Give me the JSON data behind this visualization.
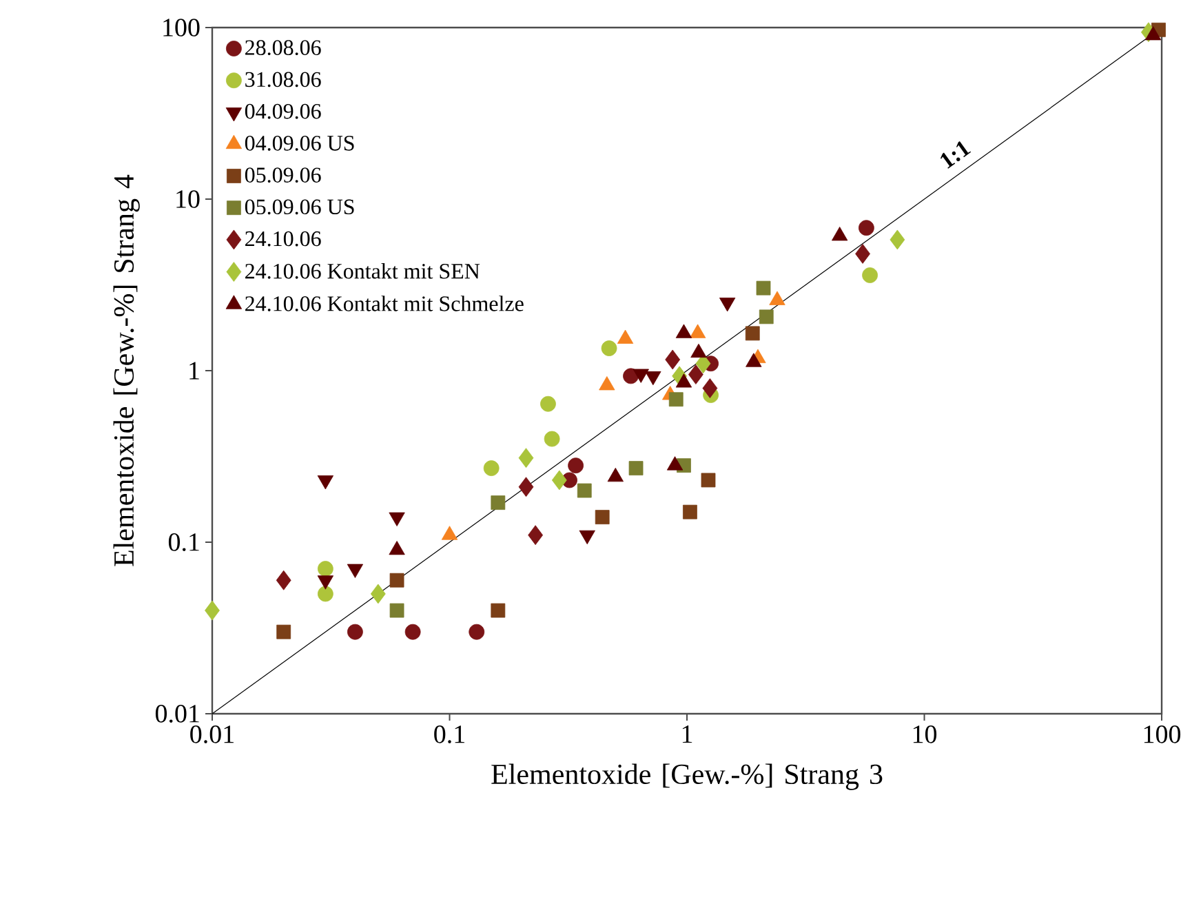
{
  "chart_data": {
    "type": "scatter",
    "xlabel": "Elementoxide [Gew.-%] Strang 3",
    "ylabel": "Elementoxide [Gew.-%] Strang 4",
    "log": "xy",
    "grid": false,
    "legend": "top left",
    "xlim": [
      0.01,
      100
    ],
    "ylim": [
      0.01,
      100
    ],
    "xticks": [
      0.01,
      0.1,
      1,
      10,
      100
    ],
    "yticks": [
      0.01,
      0.1,
      1,
      10,
      100
    ],
    "annotations": [
      "1:1"
    ],
    "series": [
      {
        "name": "28.08.06",
        "color": "#7b1416",
        "marker": "circle",
        "x": [
          0.04,
          0.07,
          0.13,
          0.34,
          0.32,
          0.58,
          1.26,
          5.7
        ],
        "values": [
          0.03,
          0.03,
          0.03,
          0.28,
          0.23,
          0.93,
          1.1,
          6.8
        ]
      },
      {
        "name": "31.08.06",
        "color": "#aec43a",
        "marker": "circle",
        "x": [
          0.03,
          0.03,
          0.15,
          0.26,
          0.27,
          0.47,
          1.26,
          5.9
        ],
        "values": [
          0.07,
          0.05,
          0.27,
          0.64,
          0.4,
          1.35,
          0.72,
          3.6
        ]
      },
      {
        "name": "04.09.06",
        "color": "#5e0000",
        "marker": "triangle-down",
        "x": [
          0.03,
          0.06,
          0.04,
          0.03,
          0.38,
          0.64,
          0.72,
          1.48
        ],
        "values": [
          0.23,
          0.14,
          0.07,
          0.06,
          0.11,
          0.96,
          0.93,
          2.5
        ]
      },
      {
        "name": "04.09.06 US",
        "color": "#f58220",
        "marker": "triangle",
        "x": [
          0.1,
          0.46,
          0.55,
          1.11,
          0.85,
          1.99,
          2.4
        ],
        "values": [
          0.11,
          0.82,
          1.53,
          1.65,
          0.72,
          1.18,
          2.57
        ]
      },
      {
        "name": "05.09.06",
        "color": "#7b3f17",
        "marker": "square",
        "x": [
          0.02,
          0.06,
          0.16,
          0.44,
          1.03,
          1.23,
          1.89,
          97
        ],
        "values": [
          0.03,
          0.06,
          0.04,
          0.14,
          0.15,
          0.23,
          1.65,
          97
        ]
      },
      {
        "name": "05.09.06 US",
        "color": "#7a7e30",
        "marker": "square",
        "x": [
          0.06,
          0.16,
          0.37,
          0.61,
          0.97,
          0.9,
          2.1,
          2.16
        ],
        "values": [
          0.04,
          0.17,
          0.2,
          0.27,
          0.28,
          0.68,
          3.03,
          2.06
        ]
      },
      {
        "name": "24.10.06",
        "color": "#7b1416",
        "marker": "diamond",
        "x": [
          0.02,
          0.23,
          0.21,
          0.87,
          1.09,
          1.25,
          5.5
        ],
        "values": [
          0.06,
          0.11,
          0.21,
          1.16,
          0.95,
          0.79,
          4.8
        ]
      },
      {
        "name": "24.10.06 Kontakt mit SEN",
        "color": "#a9c43a",
        "marker": "diamond",
        "x": [
          0.01,
          0.05,
          0.21,
          0.29,
          0.93,
          1.17,
          7.7,
          88
        ],
        "values": [
          0.04,
          0.05,
          0.31,
          0.23,
          0.93,
          1.1,
          5.8,
          94
        ]
      },
      {
        "name": "24.10.06 Kontakt mit Schmelze",
        "color": "#5e0000",
        "marker": "triangle",
        "x": [
          0.06,
          0.5,
          0.89,
          0.97,
          1.12,
          0.97,
          1.91,
          4.4,
          92
        ],
        "values": [
          0.09,
          0.24,
          0.28,
          1.65,
          1.27,
          0.85,
          1.12,
          6.1,
          90
        ]
      },
      {
        "type": "line",
        "color": "#000000",
        "marker": "none",
        "x": [
          0.01,
          100
        ],
        "values": [
          0.01,
          100
        ]
      }
    ]
  }
}
